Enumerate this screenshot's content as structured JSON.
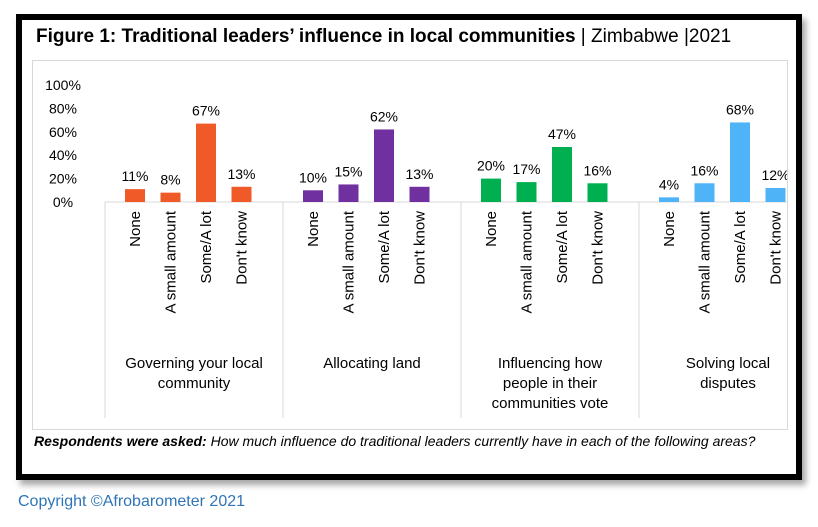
{
  "figure": {
    "title_main": "Figure 1: Traditional leaders’ influence in local communities",
    "title_sep1": " | ",
    "title_country": "Zimbabwe",
    "title_sep2": " |",
    "title_year": "2021"
  },
  "note": {
    "lead": "Respondents were asked:",
    "text": " How much influence do traditional leaders currently have in each of the following areas?"
  },
  "copyright": "Copyright ©Afrobarometer 2021",
  "chart_data": {
    "type": "bar",
    "title": "Figure 1: Traditional leaders’ influence in local communities | Zimbabwe |2021",
    "ylim": [
      0,
      100
    ],
    "yticks": [
      "100%",
      "80%",
      "60%",
      "40%",
      "20%",
      "0%"
    ],
    "grid": false,
    "categories": [
      "None",
      "A small amount",
      "Some/A lot",
      "Don't know"
    ],
    "groups": [
      {
        "label": [
          "Governing your local",
          "community"
        ],
        "color": "#f05a28",
        "values": [
          11,
          8,
          67,
          13
        ]
      },
      {
        "label": [
          "Allocating land"
        ],
        "color": "#7030a0",
        "values": [
          10,
          15,
          62,
          13
        ]
      },
      {
        "label": [
          "Influencing how",
          "people in their",
          "communities vote"
        ],
        "color": "#00b050",
        "values": [
          20,
          17,
          47,
          16
        ]
      },
      {
        "label": [
          "Solving local",
          "disputes"
        ],
        "color": "#4fb3f8",
        "values": [
          4,
          16,
          68,
          12
        ]
      }
    ],
    "value_suffix": "%"
  }
}
